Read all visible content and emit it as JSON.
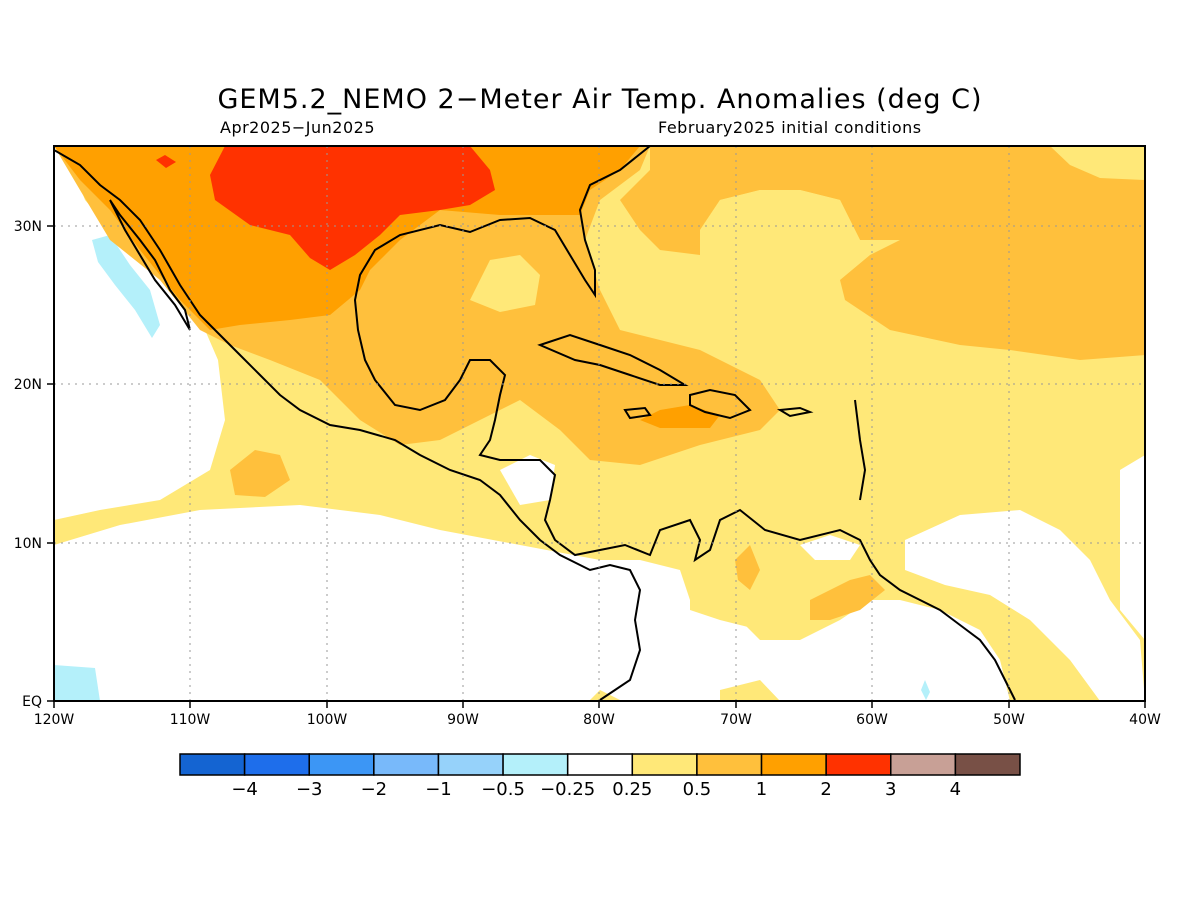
{
  "title": "GEM5.2_NEMO 2−Meter Air Temp. Anomalies (deg C)",
  "subtitle_left": "Apr2025−Jun2025",
  "subtitle_right": "February2025 initial conditions",
  "map": {
    "lon_range": [
      -120,
      -40
    ],
    "lat_range": [
      0,
      35
    ],
    "x_ticks": [
      "120W",
      "110W",
      "100W",
      "90W",
      "80W",
      "70W",
      "60W",
      "50W",
      "40W"
    ],
    "y_ticks": [
      "EQ",
      "10N",
      "20N",
      "30N"
    ]
  },
  "colorbar": {
    "labels": [
      "−4",
      "−3",
      "−2",
      "−1",
      "−0.5",
      "−0.25",
      "0.25",
      "0.5",
      "1",
      "2",
      "3",
      "4"
    ],
    "colors": [
      "#1464d2",
      "#1e6eeb",
      "#3c96f5",
      "#78b9fa",
      "#96d2fa",
      "#b4f0fa",
      "#ffffff",
      "#ffe878",
      "#ffc03c",
      "#ffa000",
      "#ff3200",
      "#c8a096",
      "#785046"
    ]
  }
}
